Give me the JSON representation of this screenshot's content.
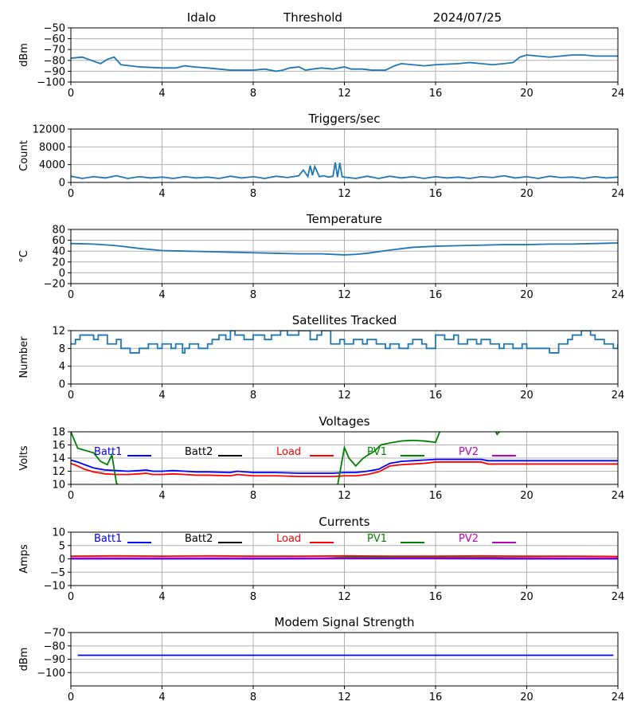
{
  "header": {
    "site": "Idalo",
    "mode": "Threshold",
    "date": "2024/07/25"
  },
  "colors": {
    "series_default": "#1f77b4",
    "Batt1": "#0000ff",
    "Batt2": "#000000",
    "Load": "#ff0000",
    "PV1": "#008000",
    "PV2": "#bf00bf",
    "grid": "#b0b0b0"
  },
  "chart_data": [
    {
      "type": "line",
      "title": "",
      "xlabel": "",
      "ylabel": "dBm",
      "xlim": [
        0,
        24
      ],
      "ylim": [
        -100,
        -50
      ],
      "xticks": [
        0,
        4,
        8,
        12,
        16,
        20,
        24
      ],
      "yticks": [
        -100,
        -90,
        -80,
        -70,
        -60,
        -50
      ],
      "ytick_labels": [
        "−100",
        "−90",
        "−80",
        "−70",
        "−60",
        "−50"
      ],
      "grid": true,
      "series": [
        {
          "color": "#1f77b4",
          "x": [
            0,
            0.5,
            0.9,
            1.3,
            1.6,
            1.9,
            2.2,
            2.6,
            3,
            4,
            4.6,
            5,
            5.4,
            6,
            6.5,
            7,
            7.5,
            8,
            8.5,
            9,
            9.3,
            9.6,
            10,
            10.3,
            10.6,
            11,
            11.5,
            12,
            12.3,
            12.8,
            13.2,
            13.8,
            14.2,
            14.5,
            15,
            15.5,
            16,
            17,
            17.5,
            18,
            18.5,
            19,
            19.4,
            19.7,
            20,
            20.5,
            21,
            21.5,
            22,
            22.5,
            23,
            24
          ],
          "y": [
            -78,
            -77,
            -80,
            -83,
            -79,
            -77,
            -84,
            -85,
            -86,
            -87,
            -87,
            -85,
            -86,
            -87,
            -88,
            -89,
            -89,
            -89,
            -88,
            -90,
            -89,
            -87,
            -86,
            -89,
            -88,
            -87,
            -88,
            -86,
            -88,
            -88,
            -89,
            -89,
            -85,
            -83,
            -84,
            -85,
            -84,
            -83,
            -82,
            -83,
            -84,
            -83,
            -82,
            -77,
            -75,
            -76,
            -77,
            -76,
            -75,
            -75,
            -76,
            -76
          ]
        }
      ]
    },
    {
      "type": "line",
      "title": "Triggers/sec",
      "xlabel": "",
      "ylabel": "Count",
      "xlim": [
        0,
        24
      ],
      "ylim": [
        0,
        12000
      ],
      "xticks": [
        0,
        4,
        8,
        12,
        16,
        20,
        24
      ],
      "yticks": [
        0,
        4000,
        8000,
        12000
      ],
      "grid": true,
      "series": [
        {
          "color": "#1f77b4",
          "x": [
            0,
            0.5,
            1,
            1.5,
            2,
            2.5,
            3,
            3.5,
            4,
            4.5,
            5,
            5.5,
            6,
            6.5,
            7,
            7.5,
            8,
            8.5,
            9,
            9.5,
            10,
            10.2,
            10.4,
            10.5,
            10.6,
            10.7,
            10.9,
            11.1,
            11.3,
            11.5,
            11.6,
            11.7,
            11.8,
            11.9,
            12,
            12.5,
            13,
            13.5,
            14,
            14.5,
            15,
            15.5,
            16,
            16.5,
            17,
            17.5,
            18,
            18.5,
            19,
            19.5,
            20,
            20.5,
            21,
            21.5,
            22,
            22.5,
            23,
            23.5,
            24
          ],
          "y": [
            1400,
            900,
            1300,
            1000,
            1500,
            900,
            1300,
            1000,
            1200,
            900,
            1300,
            1000,
            1200,
            900,
            1400,
            1000,
            1300,
            900,
            1400,
            1100,
            1500,
            2800,
            1300,
            3800,
            1600,
            3600,
            1300,
            1500,
            1200,
            1400,
            4500,
            1200,
            4400,
            1300,
            1200,
            900,
            1400,
            900,
            1400,
            1000,
            1300,
            900,
            1300,
            1000,
            1200,
            900,
            1300,
            1100,
            1500,
            1000,
            1300,
            900,
            1400,
            1100,
            1200,
            900,
            1300,
            1000,
            1200
          ]
        }
      ]
    },
    {
      "type": "line",
      "title": "Temperature",
      "xlabel": "",
      "ylabel": "°C",
      "xlim": [
        0,
        24
      ],
      "ylim": [
        -20,
        80
      ],
      "xticks": [
        0,
        4,
        8,
        12,
        16,
        20,
        24
      ],
      "yticks": [
        -20,
        0,
        20,
        40,
        60,
        80
      ],
      "ytick_labels": [
        "−20",
        "0",
        "20",
        "40",
        "60",
        "80"
      ],
      "grid": true,
      "series": [
        {
          "color": "#1f77b4",
          "x": [
            0,
            1,
            2,
            3,
            4,
            5,
            6,
            7,
            8,
            9,
            10,
            11,
            12,
            12.5,
            13,
            14,
            15,
            16,
            17,
            18,
            19,
            20,
            21,
            22,
            23,
            24
          ],
          "y": [
            54,
            53,
            50,
            45,
            41,
            40,
            39,
            38,
            37,
            36,
            35,
            35,
            33,
            34,
            36,
            42,
            47,
            49,
            50,
            51,
            52,
            52,
            53,
            53,
            54,
            55
          ]
        }
      ]
    },
    {
      "type": "line",
      "title": "Satellites Tracked",
      "xlabel": "",
      "ylabel": "Number",
      "xlim": [
        0,
        24
      ],
      "ylim": [
        0,
        12
      ],
      "xticks": [
        0,
        4,
        8,
        12,
        16,
        20,
        24
      ],
      "yticks": [
        0,
        4,
        8,
        12
      ],
      "grid": true,
      "series": [
        {
          "color": "#1f77b4",
          "step": true,
          "x": [
            0,
            0.2,
            0.4,
            1,
            1.2,
            1.6,
            2,
            2.2,
            2.6,
            3,
            3.4,
            3.8,
            4,
            4.4,
            4.6,
            4.9,
            5,
            5.2,
            5.6,
            6,
            6.2,
            6.5,
            6.8,
            7,
            7.2,
            7.6,
            8,
            8.5,
            8.8,
            9.2,
            9.5,
            10,
            10.5,
            10.8,
            11,
            11.4,
            11.8,
            12,
            12.4,
            12.8,
            13,
            13.4,
            13.8,
            14,
            14.4,
            14.8,
            15,
            15.4,
            15.6,
            16,
            16.4,
            16.8,
            17,
            17.4,
            17.8,
            18,
            18.4,
            18.8,
            19,
            19.4,
            19.8,
            20,
            20.4,
            20.8,
            21,
            21.4,
            21.8,
            22,
            22.4,
            22.8,
            23,
            23.4,
            23.8,
            24
          ],
          "y": [
            9,
            10,
            11,
            10,
            11,
            9,
            10,
            8,
            7,
            8,
            9,
            8,
            9,
            8,
            9,
            7,
            8,
            9,
            8,
            9,
            10,
            11,
            10,
            12,
            11,
            10,
            11,
            10,
            11,
            12,
            11,
            12,
            10,
            11,
            12,
            9,
            10,
            9,
            10,
            9,
            10,
            9,
            8,
            9,
            8,
            9,
            10,
            9,
            8,
            11,
            10,
            11,
            9,
            10,
            9,
            10,
            9,
            8,
            9,
            8,
            9,
            8,
            8,
            8,
            7,
            9,
            10,
            11,
            12,
            11,
            10,
            9,
            8,
            9
          ]
        }
      ]
    },
    {
      "type": "line",
      "title": "Voltages",
      "xlabel": "",
      "ylabel": "Volts",
      "xlim": [
        0,
        24
      ],
      "ylim": [
        10,
        18
      ],
      "xticks": [
        0,
        4,
        8,
        12,
        16,
        20,
        24
      ],
      "yticks": [
        10,
        12,
        14,
        16,
        18
      ],
      "grid": true,
      "legend": [
        "Batt1",
        "Batt2",
        "Load",
        "PV1",
        "PV2"
      ],
      "series": [
        {
          "name": "Batt1",
          "color": "#0000ff",
          "x": [
            0,
            0.3,
            0.6,
            1,
            1.5,
            2,
            2.5,
            3,
            3.3,
            3.6,
            4,
            4.5,
            5,
            5.5,
            6,
            7,
            7.3,
            8,
            9,
            10,
            11,
            11.5,
            12,
            12.5,
            13,
            13.5,
            14,
            14.5,
            15,
            15.5,
            16,
            17,
            18,
            18.3,
            19,
            20,
            21,
            22,
            23,
            24
          ],
          "y": [
            13.7,
            13.4,
            13.0,
            12.5,
            12.2,
            12.1,
            12.0,
            12.1,
            12.2,
            12.0,
            12.0,
            12.1,
            12.0,
            11.9,
            11.9,
            11.8,
            12.0,
            11.8,
            11.8,
            11.7,
            11.7,
            11.7,
            11.8,
            11.8,
            12.0,
            12.3,
            13.2,
            13.5,
            13.6,
            13.7,
            13.8,
            13.8,
            13.8,
            13.6,
            13.6,
            13.6,
            13.6,
            13.6,
            13.6,
            13.6
          ]
        },
        {
          "name": "Load",
          "color": "#ff0000",
          "x": [
            0,
            0.3,
            0.6,
            1,
            1.5,
            2,
            2.5,
            3,
            3.3,
            3.6,
            4,
            4.5,
            5,
            5.5,
            6,
            7,
            7.3,
            8,
            9,
            10,
            11,
            11.5,
            12,
            12.5,
            13,
            13.5,
            14,
            14.5,
            15,
            15.5,
            16,
            17,
            18,
            18.3,
            19,
            20,
            21,
            22,
            23,
            24
          ],
          "y": [
            13.2,
            12.8,
            12.3,
            11.9,
            11.6,
            11.5,
            11.5,
            11.6,
            11.7,
            11.5,
            11.5,
            11.6,
            11.5,
            11.4,
            11.4,
            11.3,
            11.5,
            11.3,
            11.3,
            11.2,
            11.2,
            11.2,
            11.3,
            11.3,
            11.5,
            11.9,
            12.8,
            13.0,
            13.1,
            13.2,
            13.4,
            13.4,
            13.4,
            13.1,
            13.1,
            13.1,
            13.1,
            13.1,
            13.1,
            13.1
          ]
        },
        {
          "name": "PV1",
          "color": "#008000",
          "x": [
            0,
            0.3,
            0.6,
            1,
            1.3,
            1.6,
            1.8,
            2.0,
            2.2,
            11.7,
            12.0,
            12.2,
            12.5,
            12.8,
            13.0,
            13.3,
            13.6,
            14.0,
            14.5,
            15.0,
            15.5,
            16.0,
            16.3,
            18.5,
            18.7,
            18.9
          ],
          "y": [
            18,
            15.5,
            15.2,
            14.8,
            13.5,
            13.0,
            14.5,
            10.2,
            9.5,
            9.8,
            15.6,
            14.0,
            12.8,
            13.9,
            14.4,
            15.0,
            16.0,
            16.3,
            16.6,
            16.7,
            16.6,
            16.4,
            19.0,
            19.0,
            17.6,
            18.4
          ]
        },
        {
          "name": "Batt2",
          "color": "#000000",
          "x": [],
          "y": []
        },
        {
          "name": "PV2",
          "color": "#bf00bf",
          "x": [],
          "y": []
        }
      ]
    },
    {
      "type": "line",
      "title": "Currents",
      "xlabel": "",
      "ylabel": "Amps",
      "xlim": [
        0,
        24
      ],
      "ylim": [
        -10,
        10
      ],
      "xticks": [
        0,
        4,
        8,
        12,
        16,
        20,
        24
      ],
      "yticks": [
        -10,
        -5,
        0,
        5,
        10
      ],
      "ytick_labels": [
        "−10",
        "−5",
        "0",
        "5",
        "10"
      ],
      "grid": true,
      "legend": [
        "Batt1",
        "Batt2",
        "Load",
        "PV1",
        "PV2"
      ],
      "series": [
        {
          "name": "Load",
          "color": "#ff0000",
          "x": [
            0,
            2,
            4,
            6,
            8,
            10,
            12,
            14,
            16,
            18,
            20,
            22,
            24
          ],
          "y": [
            1.0,
            1.1,
            1.0,
            1.1,
            1.0,
            1.0,
            1.1,
            1.0,
            1.0,
            1.1,
            1.0,
            1.0,
            0.9
          ]
        },
        {
          "name": "PV1",
          "color": "#008000",
          "x": [
            0,
            4,
            8,
            11,
            12,
            14,
            16,
            18,
            20,
            22,
            24
          ],
          "y": [
            0.2,
            0.2,
            0.2,
            0.2,
            0.6,
            0.6,
            0.5,
            0.5,
            0.4,
            0.3,
            0.2
          ]
        },
        {
          "name": "Batt1",
          "color": "#0000ff",
          "x": [
            0,
            4,
            8,
            12,
            16,
            20,
            24
          ],
          "y": [
            0.0,
            0.0,
            0.0,
            0.1,
            0.1,
            0.0,
            0.0
          ]
        },
        {
          "name": "PV2",
          "color": "#bf00bf",
          "x": [
            0,
            4,
            8,
            12,
            16,
            20,
            24
          ],
          "y": [
            0.3,
            0.3,
            0.3,
            0.3,
            0.3,
            0.3,
            0.3
          ]
        },
        {
          "name": "Batt2",
          "color": "#000000",
          "x": [],
          "y": []
        }
      ]
    },
    {
      "type": "line",
      "title": "Modem Signal Strength",
      "xlabel": "",
      "ylabel": "dBm",
      "xlim": [
        0,
        24
      ],
      "ylim": [
        -110,
        -70
      ],
      "xticks": [
        0,
        4,
        8,
        12,
        16,
        20,
        24
      ],
      "yticks": [
        -100,
        -90,
        -80,
        -70
      ],
      "ytick_labels": [
        "−100",
        "−90",
        "−80",
        "−70"
      ],
      "grid": true,
      "series": [
        {
          "color": "#0000ff",
          "x": [
            0.3,
            23.8
          ],
          "y": [
            -87,
            -87
          ]
        }
      ]
    }
  ]
}
